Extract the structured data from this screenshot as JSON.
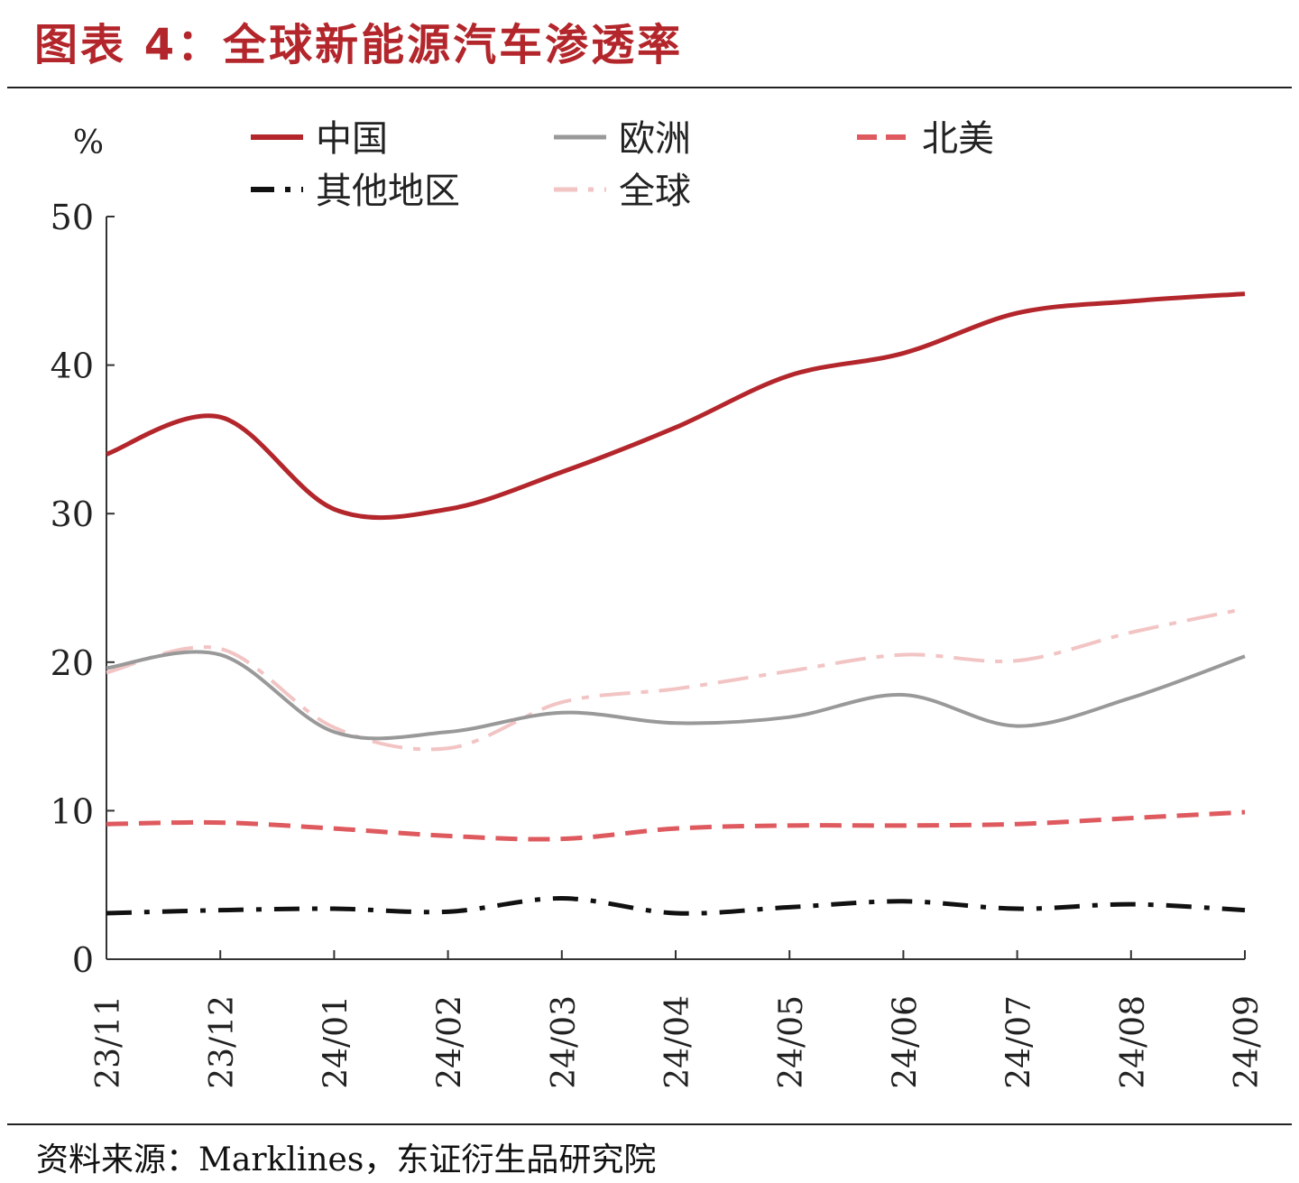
{
  "title": "图表 4：全球新能源汽车渗透率",
  "source": "资料来源：Marklines，东证衍生品研究院",
  "chart_data": {
    "type": "line",
    "ylabel": "%",
    "xlabel": "",
    "ylim": [
      0,
      50
    ],
    "yticks": [
      0,
      10,
      20,
      30,
      40,
      50
    ],
    "categories": [
      "23/11",
      "23/12",
      "24/01",
      "24/02",
      "24/03",
      "24/04",
      "24/05",
      "24/06",
      "24/07",
      "24/08",
      "24/09"
    ],
    "legend_position": "top",
    "grid": false,
    "series": [
      {
        "name": "中国",
        "color": "#b3262b",
        "style": "solid",
        "width": 5,
        "values": [
          34.0,
          36.5,
          30.3,
          30.3,
          32.8,
          35.8,
          39.3,
          40.8,
          43.5,
          44.3,
          44.8
        ]
      },
      {
        "name": "欧洲",
        "color": "#999999",
        "style": "solid",
        "width": 4,
        "values": [
          19.6,
          20.5,
          15.3,
          15.3,
          16.6,
          15.9,
          16.3,
          17.8,
          15.7,
          17.6,
          20.4
        ]
      },
      {
        "name": "北美",
        "color": "#de5a5f",
        "style": "dash",
        "width": 5,
        "values": [
          9.1,
          9.2,
          8.8,
          8.3,
          8.1,
          8.8,
          9.0,
          9.0,
          9.1,
          9.5,
          9.9
        ]
      },
      {
        "name": "其他地区",
        "color": "#111111",
        "style": "dashdot",
        "width": 5,
        "values": [
          3.1,
          3.3,
          3.4,
          3.2,
          4.1,
          3.1,
          3.5,
          3.9,
          3.4,
          3.7,
          3.3
        ]
      },
      {
        "name": "全球",
        "color": "#f2c4c4",
        "style": "dashdotlight",
        "width": 4,
        "values": [
          19.3,
          20.9,
          15.6,
          14.2,
          17.3,
          18.2,
          19.4,
          20.5,
          20.1,
          22.0,
          23.6
        ]
      }
    ]
  }
}
